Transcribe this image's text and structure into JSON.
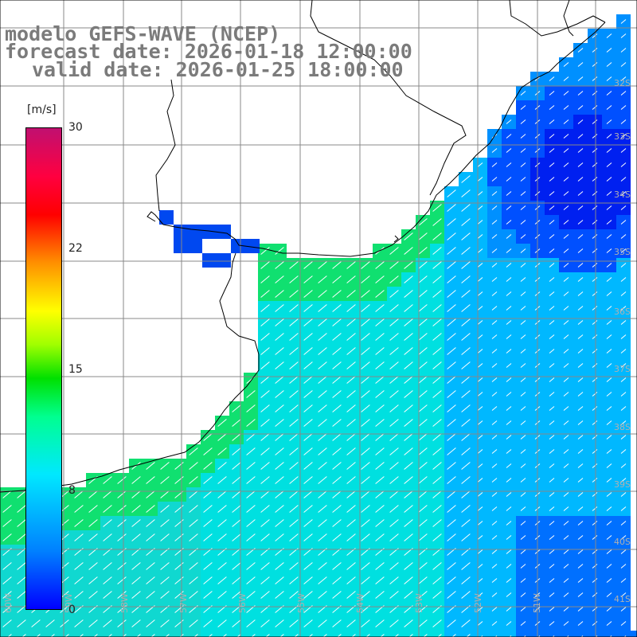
{
  "title": {
    "line1": "modelo GEFS-WAVE (NCEP)",
    "line2": "forecast date: 2026-01-18 12:00:00",
    "line3": "valid date: 2026-01-25 18:00:00"
  },
  "colorbar": {
    "unit": "[m/s]",
    "labels": [
      "30",
      "22",
      "15",
      "8",
      "0"
    ],
    "colors": [
      "#0000ff",
      "#0080ff",
      "#00e8ff",
      "#00ff90",
      "#00e000",
      "#ffff00",
      "#ff9000",
      "#ff0000",
      "#c01070"
    ]
  },
  "axes": {
    "lat_labels": [
      "32S",
      "33S",
      "34S",
      "35S",
      "36S",
      "37S",
      "38S",
      "39S",
      "40S",
      "41S"
    ],
    "lon_labels": [
      "60W",
      "59W",
      "58W",
      "57W",
      "56W",
      "55W",
      "54W",
      "53W",
      "52W",
      "51W"
    ]
  },
  "map_colors": {
    "land": "#ffffff",
    "coast": "#000000",
    "grid": "#888888",
    "arrows": "#ffffff"
  }
}
